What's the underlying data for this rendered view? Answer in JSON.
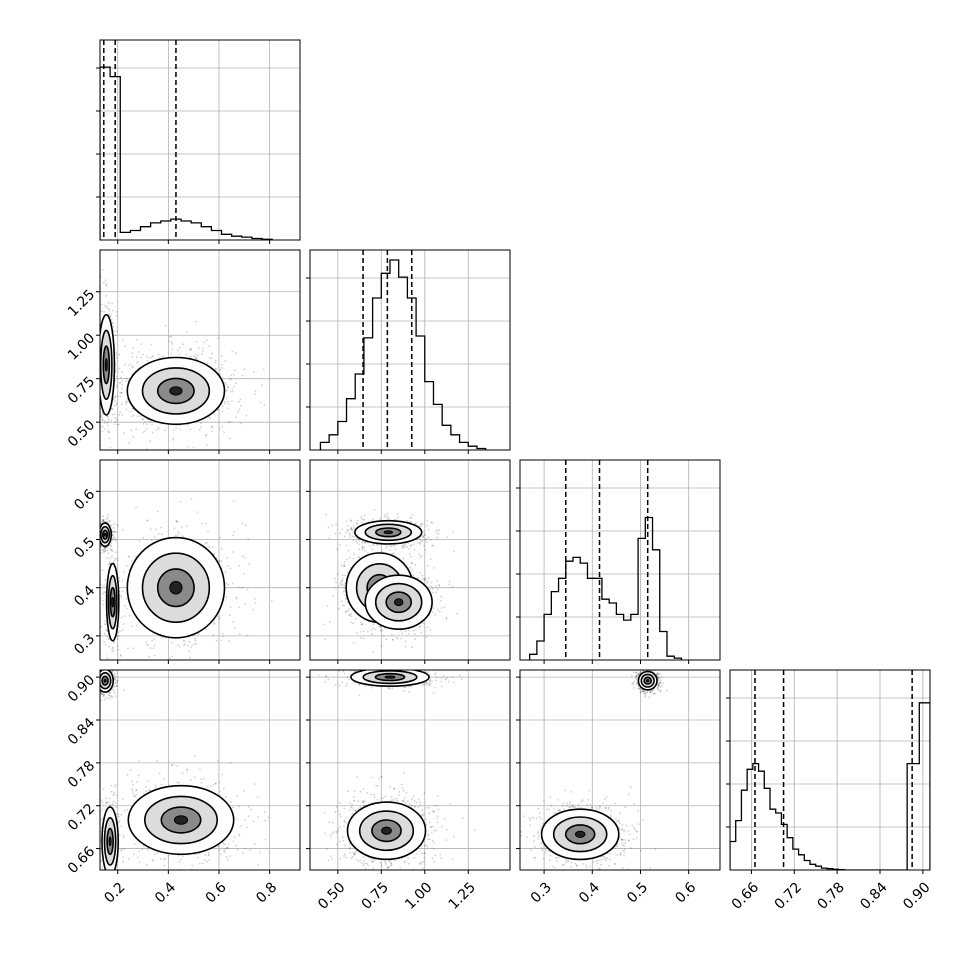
{
  "chart_data": {
    "type": "corner",
    "parameters": [
      "",
      "",
      "",
      ""
    ],
    "colors": {
      "frame": "#000000",
      "grid": "#b0b0b0",
      "points": "#000000",
      "histogram": "#000000"
    },
    "grid": true,
    "axes": [
      {
        "range": [
          0.13,
          0.92
        ],
        "ticks": [
          0.2,
          0.4,
          0.6,
          0.8
        ],
        "tick_labels": [
          "0.2",
          "0.4",
          "0.6",
          "0.8"
        ]
      },
      {
        "range": [
          0.34,
          1.49
        ],
        "ticks": [
          0.5,
          0.75,
          1.0,
          1.25
        ],
        "tick_labels": [
          "0.50",
          "0.75",
          "1.00",
          "1.25"
        ]
      },
      {
        "range": [
          0.25,
          0.665
        ],
        "ticks": [
          0.3,
          0.4,
          0.5,
          0.6
        ],
        "tick_labels": [
          "0.3",
          "0.4",
          "0.5",
          "0.6"
        ]
      },
      {
        "range": [
          0.63,
          0.91
        ],
        "ticks": [
          0.66,
          0.72,
          0.78,
          0.84,
          0.9
        ],
        "tick_labels": [
          "0.66",
          "0.72",
          "0.78",
          "0.84",
          "0.90"
        ]
      }
    ],
    "histograms": [
      {
        "param": 0,
        "quantiles": [
          0.145,
          0.19,
          0.43
        ],
        "bin_edges": [
          0.13,
          0.17,
          0.21,
          0.25,
          0.29,
          0.33,
          0.37,
          0.41,
          0.45,
          0.49,
          0.53,
          0.57,
          0.61,
          0.65,
          0.69,
          0.73,
          0.77,
          0.81
        ],
        "counts": [
          0.91,
          0.86,
          0.04,
          0.05,
          0.07,
          0.09,
          0.1,
          0.11,
          0.1,
          0.09,
          0.07,
          0.05,
          0.03,
          0.02,
          0.015,
          0.008,
          0.004
        ]
      },
      {
        "param": 1,
        "quantiles": [
          0.645,
          0.785,
          0.925
        ],
        "bin_edges": [
          0.4,
          0.45,
          0.5,
          0.55,
          0.6,
          0.65,
          0.7,
          0.75,
          0.8,
          0.85,
          0.9,
          0.95,
          1.0,
          1.05,
          1.1,
          1.15,
          1.2,
          1.25,
          1.3,
          1.35
        ],
        "counts": [
          0.04,
          0.08,
          0.15,
          0.27,
          0.4,
          0.59,
          0.8,
          0.93,
          1.0,
          0.91,
          0.8,
          0.6,
          0.36,
          0.24,
          0.13,
          0.08,
          0.04,
          0.02,
          0.008
        ]
      },
      {
        "param": 2,
        "quantiles": [
          0.345,
          0.415,
          0.515
        ],
        "bin_edges": [
          0.27,
          0.285,
          0.3,
          0.315,
          0.33,
          0.345,
          0.36,
          0.375,
          0.39,
          0.405,
          0.42,
          0.435,
          0.45,
          0.465,
          0.48,
          0.495,
          0.51,
          0.525,
          0.54,
          0.555,
          0.57,
          0.585
        ],
        "counts": [
          0.03,
          0.1,
          0.24,
          0.36,
          0.43,
          0.52,
          0.54,
          0.51,
          0.43,
          0.43,
          0.32,
          0.3,
          0.24,
          0.21,
          0.24,
          0.64,
          0.75,
          0.58,
          0.15,
          0.02,
          0.01
        ]
      },
      {
        "param": 3,
        "quantiles": [
          0.665,
          0.705,
          0.885
        ],
        "bin_edges": [
          0.63,
          0.638,
          0.646,
          0.654,
          0.662,
          0.67,
          0.678,
          0.686,
          0.694,
          0.702,
          0.71,
          0.718,
          0.726,
          0.734,
          0.742,
          0.75,
          0.758,
          0.766,
          0.774,
          0.782,
          0.79,
          0.878,
          0.895,
          0.91
        ],
        "counts": [
          0.15,
          0.26,
          0.42,
          0.53,
          0.56,
          0.52,
          0.43,
          0.32,
          0.3,
          0.24,
          0.17,
          0.11,
          0.08,
          0.05,
          0.03,
          0.02,
          0.01,
          0.007,
          0.004,
          0.002,
          0.0,
          0.56,
          0.88
        ]
      }
    ],
    "scatter_panels": [
      {
        "x_param": 0,
        "y_param": 1,
        "modes": [
          {
            "x": 0.155,
            "y": 0.83,
            "sx": 0.02,
            "sy": 0.18,
            "weight": 0.4
          },
          {
            "x": 0.43,
            "y": 0.68,
            "sx": 0.12,
            "sy": 0.12,
            "weight": 0.6
          }
        ]
      },
      {
        "x_param": 0,
        "y_param": 2,
        "modes": [
          {
            "x": 0.15,
            "y": 0.51,
            "sx": 0.015,
            "sy": 0.015,
            "weight": 0.35
          },
          {
            "x": 0.18,
            "y": 0.37,
            "sx": 0.015,
            "sy": 0.05,
            "weight": 0.2
          },
          {
            "x": 0.43,
            "y": 0.4,
            "sx": 0.12,
            "sy": 0.065,
            "weight": 0.45
          }
        ]
      },
      {
        "x_param": 0,
        "y_param": 3,
        "modes": [
          {
            "x": 0.15,
            "y": 0.895,
            "sx": 0.02,
            "sy": 0.01,
            "weight": 0.35
          },
          {
            "x": 0.17,
            "y": 0.67,
            "sx": 0.02,
            "sy": 0.03,
            "weight": 0.2
          },
          {
            "x": 0.45,
            "y": 0.7,
            "sx": 0.13,
            "sy": 0.03,
            "weight": 0.45
          }
        ]
      },
      {
        "x_param": 1,
        "y_param": 2,
        "modes": [
          {
            "x": 0.79,
            "y": 0.515,
            "sx": 0.12,
            "sy": 0.015,
            "weight": 0.35
          },
          {
            "x": 0.74,
            "y": 0.4,
            "sx": 0.12,
            "sy": 0.045,
            "weight": 0.4
          },
          {
            "x": 0.85,
            "y": 0.37,
            "sx": 0.12,
            "sy": 0.035,
            "weight": 0.25
          }
        ]
      },
      {
        "x_param": 1,
        "y_param": 3,
        "modes": [
          {
            "x": 0.8,
            "y": 0.9,
            "sx": 0.14,
            "sy": 0.008,
            "weight": 0.35
          },
          {
            "x": 0.78,
            "y": 0.685,
            "sx": 0.14,
            "sy": 0.025,
            "weight": 0.65
          }
        ]
      },
      {
        "x_param": 2,
        "y_param": 3,
        "modes": [
          {
            "x": 0.515,
            "y": 0.895,
            "sx": 0.012,
            "sy": 0.008,
            "weight": 0.35
          },
          {
            "x": 0.375,
            "y": 0.68,
            "sx": 0.05,
            "sy": 0.022,
            "weight": 0.65
          }
        ]
      }
    ]
  }
}
